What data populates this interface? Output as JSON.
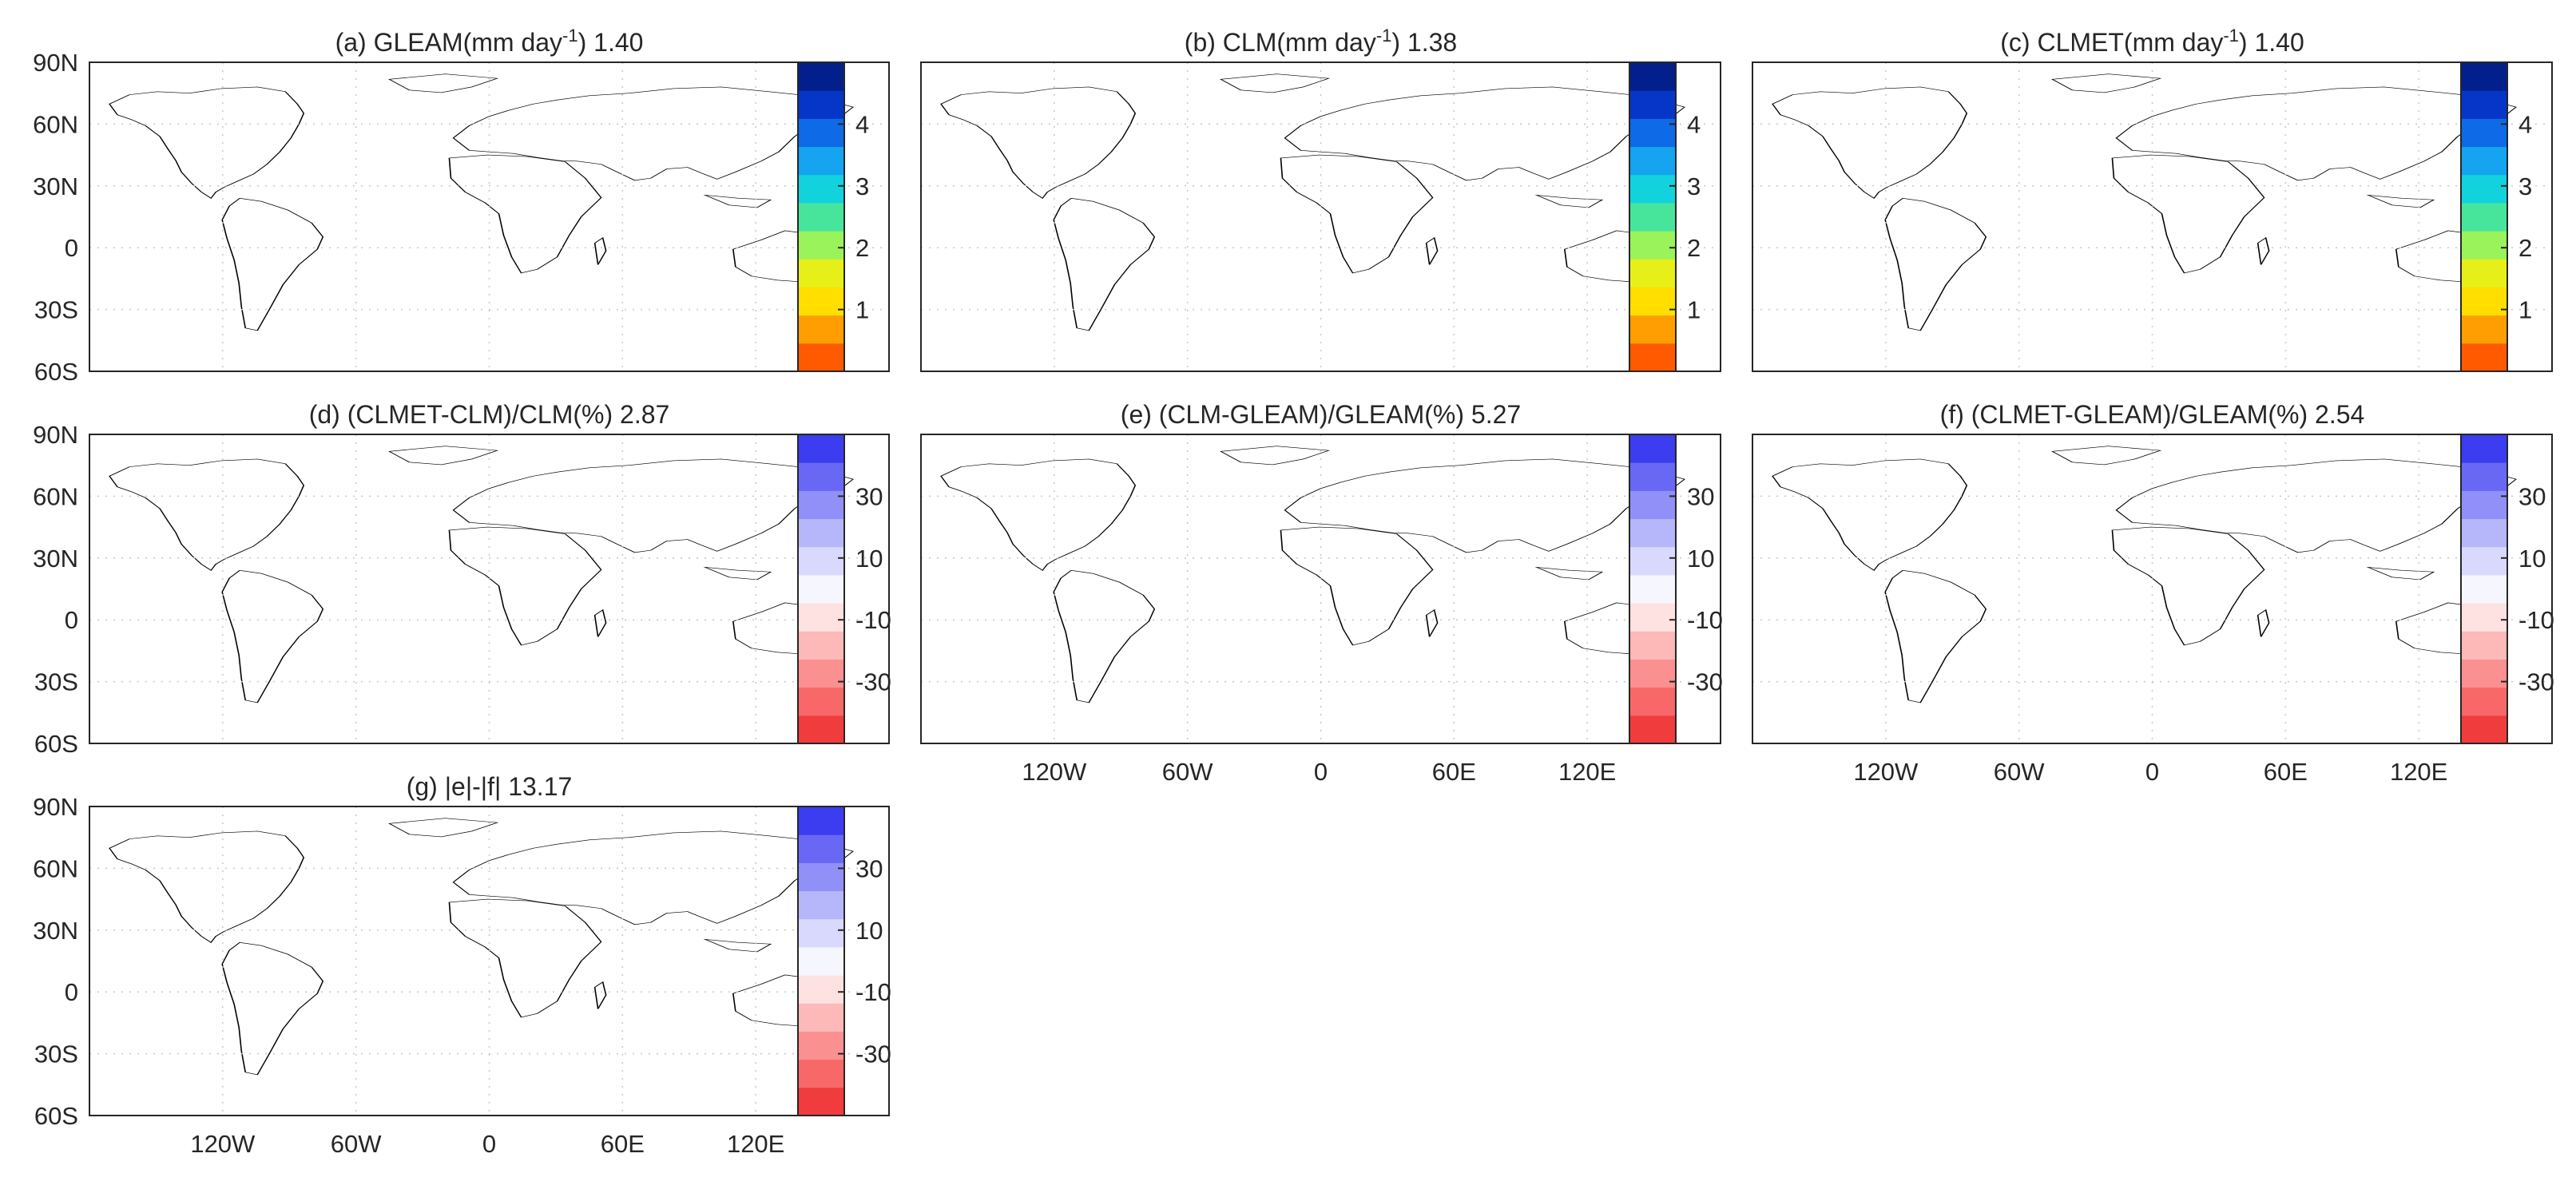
{
  "figure": {
    "lon_ticks": [
      "120W",
      "60W",
      "0",
      "60E",
      "120E"
    ],
    "lat_ticks": [
      "90N",
      "60N",
      "30N",
      "0",
      "30S",
      "60S"
    ],
    "colors": {
      "et_scale": [
        "#ff5a00",
        "#ff9e00",
        "#ffde00",
        "#e6f018",
        "#9af35a",
        "#47e59c",
        "#12d3dd",
        "#14a4f0",
        "#0e6ae6",
        "#0636c8",
        "#021f8c"
      ],
      "diff_scale": [
        "#f03c3c",
        "#f86868",
        "#fb9090",
        "#fdb8b8",
        "#fee1e1",
        "#f6f6ff",
        "#d9d9fd",
        "#b6b6fb",
        "#9090f8",
        "#6868f5",
        "#3c3cf0"
      ]
    }
  },
  "chart_data": [
    {
      "type": "heatmap",
      "panel": "a",
      "title": "(a) GLEAM(mm day",
      "title_sup": "-1",
      "title_tail": ") 1.40",
      "colorbar": {
        "ticks": [
          "1",
          "2",
          "3",
          "4"
        ],
        "range": [
          0,
          5
        ]
      },
      "show_lat_labels": true,
      "show_lon_labels": false
    },
    {
      "type": "heatmap",
      "panel": "b",
      "title": "(b) CLM(mm day",
      "title_sup": "-1",
      "title_tail": ") 1.38",
      "colorbar": {
        "ticks": [
          "1",
          "2",
          "3",
          "4"
        ],
        "range": [
          0,
          5
        ]
      },
      "show_lat_labels": false,
      "show_lon_labels": false
    },
    {
      "type": "heatmap",
      "panel": "c",
      "title": "(c) CLMET(mm day",
      "title_sup": "-1",
      "title_tail": ") 1.40",
      "colorbar": {
        "ticks": [
          "1",
          "2",
          "3",
          "4"
        ],
        "range": [
          0,
          5
        ]
      },
      "show_lat_labels": false,
      "show_lon_labels": false
    },
    {
      "type": "heatmap",
      "panel": "d",
      "title": "(d) (CLMET-CLM)/CLM(%) 2.87",
      "colorbar": {
        "ticks": [
          "30",
          "10",
          "-10",
          "-30"
        ],
        "range": [
          -50,
          50
        ]
      },
      "show_lat_labels": true,
      "show_lon_labels": false
    },
    {
      "type": "heatmap",
      "panel": "e",
      "title": "(e) (CLM-GLEAM)/GLEAM(%) 5.27",
      "colorbar": {
        "ticks": [
          "30",
          "10",
          "-10",
          "-30"
        ],
        "range": [
          -50,
          50
        ]
      },
      "show_lat_labels": false,
      "show_lon_labels": true
    },
    {
      "type": "heatmap",
      "panel": "f",
      "title": "(f) (CLMET-GLEAM)/GLEAM(%) 2.54",
      "colorbar": {
        "ticks": [
          "30",
          "10",
          "-10",
          "-30"
        ],
        "range": [
          -50,
          50
        ]
      },
      "show_lat_labels": false,
      "show_lon_labels": true
    },
    {
      "type": "heatmap",
      "panel": "g",
      "title": "(g) |e|-|f| 13.17",
      "colorbar": {
        "ticks": [
          "30",
          "10",
          "-10",
          "-30"
        ],
        "range": [
          -50,
          50
        ]
      },
      "show_lat_labels": true,
      "show_lon_labels": true
    }
  ]
}
